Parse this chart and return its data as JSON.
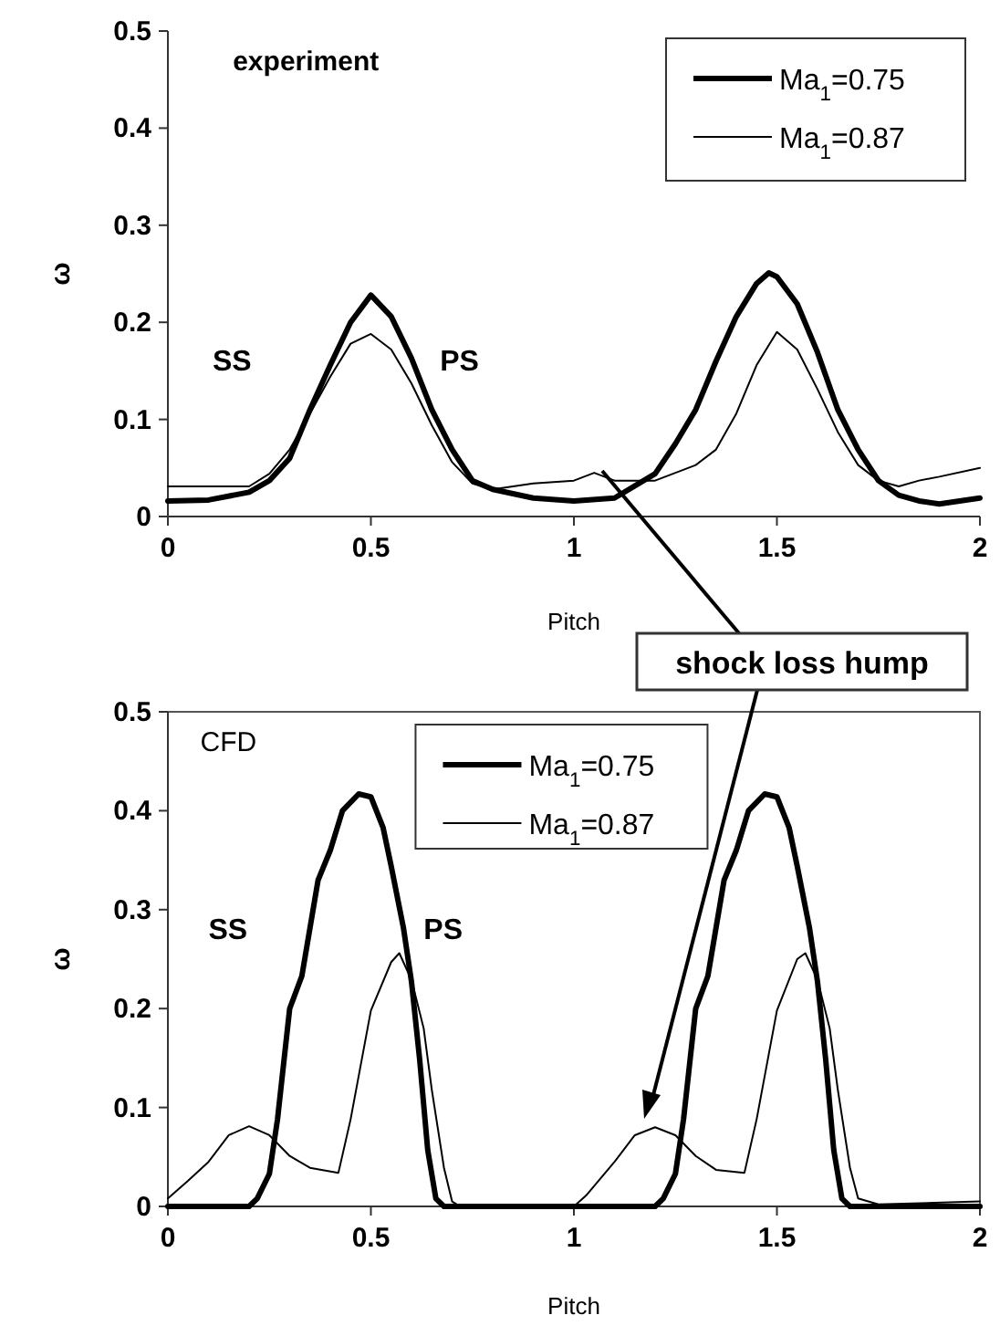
{
  "chart_data": [
    {
      "type": "line",
      "title": "experiment",
      "xlabel": "Pitch",
      "ylabel": "ω",
      "xlim": [
        0,
        2
      ],
      "xticks": [
        0,
        0.5,
        1,
        1.5,
        2
      ],
      "ylim": [
        0,
        0.5
      ],
      "yticks": [
        0,
        0.1,
        0.2,
        0.3,
        0.4,
        0.5
      ],
      "legend": "top right",
      "annotations": [
        "SS",
        "PS"
      ],
      "series": [
        {
          "name": "Ma$_{1}$=0.75",
          "color": "#000000",
          "x": [
            0,
            0.1,
            0.2,
            0.25,
            0.3,
            0.35,
            0.4,
            0.45,
            0.5,
            0.55,
            0.6,
            0.65,
            0.7,
            0.75,
            0.8,
            0.9,
            1.0,
            1.1,
            1.2,
            1.25,
            1.3,
            1.35,
            1.4,
            1.45,
            1.48,
            1.5,
            1.55,
            1.6,
            1.65,
            1.7,
            1.75,
            1.8,
            1.85,
            1.9,
            2.0
          ],
          "values": [
            0.016,
            0.017,
            0.025,
            0.037,
            0.06,
            0.11,
            0.156,
            0.2,
            0.228,
            0.206,
            0.163,
            0.11,
            0.069,
            0.037,
            0.028,
            0.019,
            0.016,
            0.019,
            0.044,
            0.075,
            0.11,
            0.16,
            0.206,
            0.24,
            0.251,
            0.247,
            0.219,
            0.169,
            0.11,
            0.069,
            0.037,
            0.022,
            0.016,
            0.013,
            0.019
          ]
        },
        {
          "name": "Ma$_{1}$=0.87",
          "color": "#000000",
          "x": [
            0,
            0.1,
            0.2,
            0.25,
            0.3,
            0.35,
            0.4,
            0.45,
            0.5,
            0.55,
            0.6,
            0.65,
            0.7,
            0.75,
            0.8,
            0.9,
            1.0,
            1.05,
            1.1,
            1.2,
            1.3,
            1.35,
            1.4,
            1.45,
            1.5,
            1.55,
            1.6,
            1.65,
            1.7,
            1.75,
            1.8,
            1.85,
            1.9,
            2.0
          ],
          "values": [
            0.031,
            0.031,
            0.031,
            0.044,
            0.069,
            0.106,
            0.144,
            0.178,
            0.188,
            0.172,
            0.137,
            0.094,
            0.056,
            0.034,
            0.028,
            0.034,
            0.037,
            0.045,
            0.037,
            0.037,
            0.053,
            0.069,
            0.106,
            0.156,
            0.19,
            0.172,
            0.131,
            0.087,
            0.053,
            0.037,
            0.031,
            0.037,
            0.041,
            0.05
          ]
        }
      ]
    },
    {
      "type": "line",
      "title": "CFD",
      "xlabel": "Pitch",
      "ylabel": "ω",
      "xlim": [
        0,
        2
      ],
      "xticks": [
        0,
        0.5,
        1,
        1.5,
        2
      ],
      "ylim": [
        0,
        0.5
      ],
      "yticks": [
        0,
        0.1,
        0.2,
        0.3,
        0.4,
        0.5
      ],
      "legend": "top",
      "annotations": [
        "SS",
        "PS",
        "shock loss hump"
      ],
      "series": [
        {
          "name": "Ma$_{1}$=0.75",
          "color": "#000000",
          "x": [
            0,
            0.2,
            0.22,
            0.25,
            0.27,
            0.3,
            0.33,
            0.37,
            0.4,
            0.43,
            0.47,
            0.5,
            0.53,
            0.55,
            0.58,
            0.6,
            0.62,
            0.64,
            0.66,
            0.68,
            1.2,
            1.22,
            1.25,
            1.27,
            1.3,
            1.33,
            1.37,
            1.4,
            1.43,
            1.47,
            1.5,
            1.53,
            1.55,
            1.58,
            1.6,
            1.62,
            1.64,
            1.66,
            1.68,
            2.0
          ],
          "values": [
            0,
            0,
            0.008,
            0.033,
            0.088,
            0.2,
            0.233,
            0.33,
            0.36,
            0.4,
            0.417,
            0.414,
            0.383,
            0.344,
            0.282,
            0.227,
            0.149,
            0.057,
            0.008,
            0,
            0,
            0.008,
            0.033,
            0.088,
            0.2,
            0.233,
            0.33,
            0.36,
            0.4,
            0.417,
            0.414,
            0.383,
            0.344,
            0.282,
            0.227,
            0.149,
            0.057,
            0.008,
            0,
            0
          ]
        },
        {
          "name": "Ma$_{1}$=0.87",
          "color": "#000000",
          "x": [
            0,
            0.05,
            0.1,
            0.15,
            0.2,
            0.25,
            0.3,
            0.35,
            0.42,
            0.45,
            0.5,
            0.55,
            0.57,
            0.6,
            0.63,
            0.65,
            0.68,
            0.7,
            0.72,
            1.0,
            1.03,
            1.1,
            1.15,
            1.2,
            1.25,
            1.3,
            1.35,
            1.42,
            1.45,
            1.5,
            1.55,
            1.57,
            1.6,
            1.63,
            1.65,
            1.68,
            1.7,
            1.75,
            2.0
          ],
          "values": [
            0.008,
            0.026,
            0.045,
            0.072,
            0.081,
            0.072,
            0.051,
            0.039,
            0.034,
            0.088,
            0.198,
            0.247,
            0.256,
            0.229,
            0.18,
            0.118,
            0.039,
            0.005,
            0,
            0,
            0.011,
            0.045,
            0.072,
            0.08,
            0.072,
            0.051,
            0.037,
            0.034,
            0.088,
            0.198,
            0.25,
            0.256,
            0.229,
            0.18,
            0.118,
            0.039,
            0.008,
            0.002,
            0.005
          ]
        }
      ]
    }
  ]
}
